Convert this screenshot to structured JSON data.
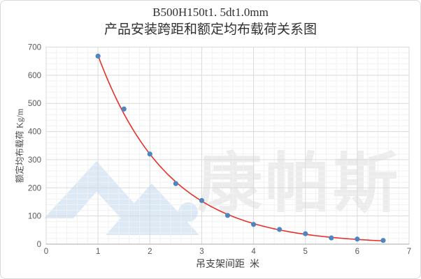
{
  "frame": {
    "background": "#ffffff",
    "border_color": "#d9d9d9"
  },
  "title": {
    "line1": "B500H150t1. 5dt1.0mm",
    "line2": "产品安装跨距和额定均布载荷关系图",
    "color": "#303030"
  },
  "watermark": {
    "text": "康帕斯",
    "text_color": "#ececec",
    "logo_color": "#dce9f6"
  },
  "chart_data": {
    "type": "scatter",
    "title": "B500H150t1. 5dt1.0mm 产品安装跨距和额定均布载荷关系图",
    "xlabel": "吊支架间距  米",
    "ylabel": "额定均布载荷 Kg/m",
    "x": [
      1,
      1.5,
      2,
      2.5,
      3,
      3.5,
      4,
      4.5,
      5,
      5.5,
      6,
      6.5
    ],
    "series": [
      {
        "name": "额定均布载荷",
        "values": [
          668,
          480,
          320,
          215,
          155,
          102,
          70,
          52,
          37,
          22,
          18,
          13
        ]
      }
    ],
    "trendline": {
      "type": "exponential",
      "a": 1403.4,
      "k": 0.739,
      "x_start": 1,
      "x_end": 6.5,
      "color": "#e8302a"
    },
    "marker": {
      "color": "#4f86c0",
      "radius": 3.6
    },
    "xlim": [
      0,
      7
    ],
    "ylim": [
      0,
      700
    ],
    "x_ticks": [
      0,
      1,
      2,
      3,
      4,
      5,
      6,
      7
    ],
    "y_ticks": [
      0,
      100,
      200,
      300,
      400,
      500,
      600,
      700
    ],
    "x_minor_step": 0.2,
    "y_minor_step": 20,
    "grid": {
      "major_color": "#dadada",
      "minor_color": "#f1f1f1",
      "axis_color": "#a9a9a9",
      "on": true
    },
    "tick_label_color": "#595959",
    "legend_position": "none"
  }
}
